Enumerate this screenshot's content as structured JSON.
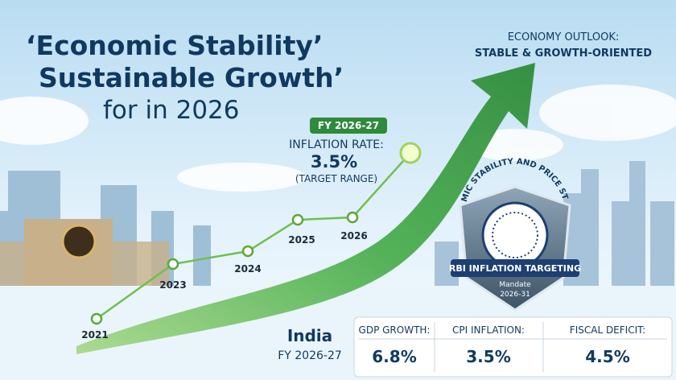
{
  "header": {
    "title_lines": [
      "‘Economic Stability’",
      "Sustainable Growth’",
      "for in 2026"
    ]
  },
  "outlook": {
    "label": "ECONOMY OUTLOOK:",
    "value": "STABLE & GROWTH-ORIENTED"
  },
  "callout": {
    "tag": "FY 2026-27",
    "label": "INFLATION RATE:",
    "value": "3.5%",
    "note": "(TARGET RANGE)"
  },
  "timeline": {
    "years": [
      "2021",
      "2023",
      "2024",
      "2025",
      "2026"
    ]
  },
  "badge": {
    "arc": "ECONOMIC STABILITY AND PRICE STABILITY",
    "banner": "RBI INFLATION TARGETING",
    "sub": "Mandate",
    "years": "2026-31"
  },
  "summary": {
    "country": "India",
    "period": "FY 2026-27",
    "metrics": [
      {
        "label": "GDP GROWTH:",
        "value": "6.8%"
      },
      {
        "label": "CPI INFLATION:",
        "value": "3.5%"
      },
      {
        "label": "FISCAL DEFICIT:",
        "value": "4.5%"
      }
    ]
  }
}
